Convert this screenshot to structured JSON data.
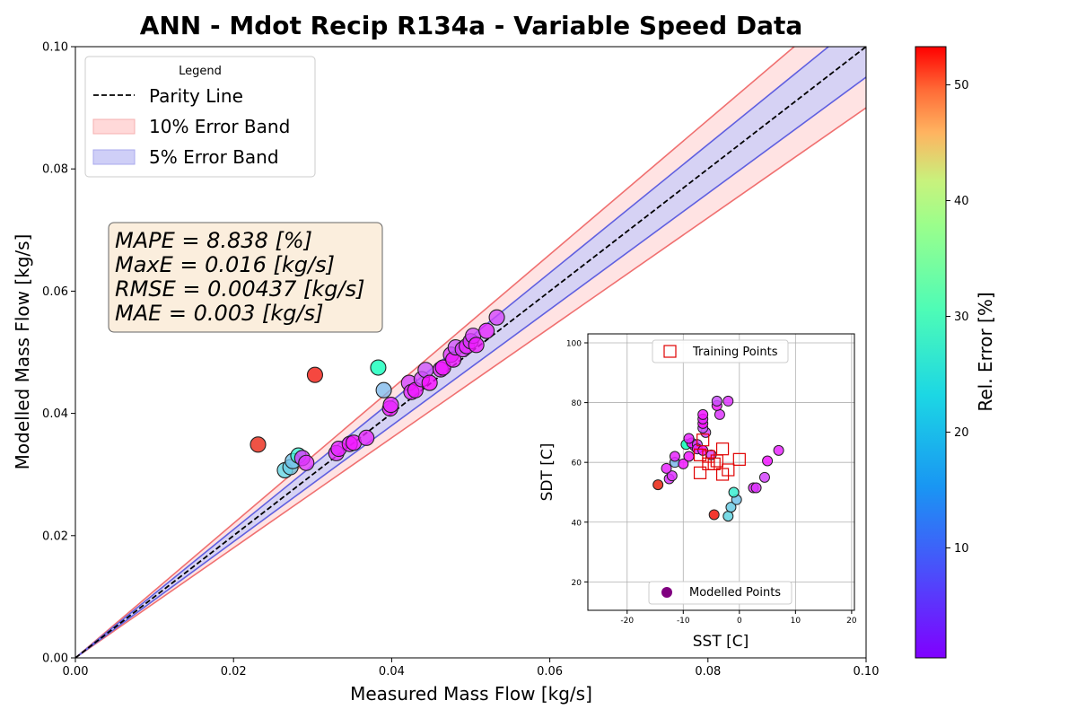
{
  "chart_data": [
    {
      "type": "scatter",
      "title": "ANN - Mdot Recip R134a - Variable Speed Data",
      "xlabel": "Measured Mass Flow [kg/s]",
      "ylabel": "Modelled Mass Flow [kg/s]",
      "xlim": [
        0,
        0.1
      ],
      "ylim": [
        0,
        0.1
      ],
      "xticks": [
        "0.00",
        "0.02",
        "0.04",
        "0.06",
        "0.08",
        "0.10"
      ],
      "yticks": [
        "0.00",
        "0.02",
        "0.04",
        "0.06",
        "0.08",
        "0.10"
      ],
      "grid": false,
      "legend": {
        "title": "Legend",
        "placement": "top-left",
        "entries": [
          "Parity Line",
          "10% Error Band",
          "5% Error Band"
        ]
      },
      "stats_box": [
        "MAPE = 8.838 [%]",
        "MaxE = 0.016 [kg/s]",
        "RMSE = 0.00437 [kg/s]",
        "MAE = 0.003 [kg/s]"
      ],
      "colors": {
        "band10_fill": "#ffd9d9",
        "band10_line": "#f07070",
        "band5_fill": "#cfcff7",
        "band5_line": "#6060e0",
        "stats_box": "#faebd7"
      },
      "points": [
        {
          "x": 0.0231,
          "y": 0.0349,
          "err": 51
        },
        {
          "x": 0.0303,
          "y": 0.0463,
          "err": 52
        },
        {
          "x": 0.0383,
          "y": 0.0475,
          "err": 26
        },
        {
          "x": 0.039,
          "y": 0.0438,
          "err": 14
        },
        {
          "x": 0.0265,
          "y": 0.0307,
          "err": 17
        },
        {
          "x": 0.0272,
          "y": 0.0312,
          "err": 16
        },
        {
          "x": 0.0275,
          "y": 0.0322,
          "err": 15
        },
        {
          "x": 0.0282,
          "y": 0.0331,
          "err": 21
        },
        {
          "x": 0.0287,
          "y": 0.0327,
          "err": 4
        },
        {
          "x": 0.0292,
          "y": 0.0319,
          "err": 4
        },
        {
          "x": 0.033,
          "y": 0.0335,
          "err": 3
        },
        {
          "x": 0.0333,
          "y": 0.0342,
          "err": 3
        },
        {
          "x": 0.0347,
          "y": 0.035,
          "err": 2
        },
        {
          "x": 0.0352,
          "y": 0.0352,
          "err": 2
        },
        {
          "x": 0.0368,
          "y": 0.036,
          "err": 3
        },
        {
          "x": 0.0398,
          "y": 0.0408,
          "err": 2
        },
        {
          "x": 0.0399,
          "y": 0.0414,
          "err": 3
        },
        {
          "x": 0.0422,
          "y": 0.045,
          "err": 5
        },
        {
          "x": 0.0425,
          "y": 0.0435,
          "err": 3
        },
        {
          "x": 0.043,
          "y": 0.0438,
          "err": 2
        },
        {
          "x": 0.0438,
          "y": 0.0456,
          "err": 5
        },
        {
          "x": 0.0443,
          "y": 0.0471,
          "err": 6
        },
        {
          "x": 0.0448,
          "y": 0.045,
          "err": 1
        },
        {
          "x": 0.0462,
          "y": 0.0472,
          "err": 3
        },
        {
          "x": 0.0465,
          "y": 0.0475,
          "err": 2
        },
        {
          "x": 0.0475,
          "y": 0.0496,
          "err": 4
        },
        {
          "x": 0.0478,
          "y": 0.0488,
          "err": 2
        },
        {
          "x": 0.0481,
          "y": 0.0508,
          "err": 6
        },
        {
          "x": 0.049,
          "y": 0.0505,
          "err": 4
        },
        {
          "x": 0.0495,
          "y": 0.051,
          "err": 3
        },
        {
          "x": 0.05,
          "y": 0.0518,
          "err": 4
        },
        {
          "x": 0.0503,
          "y": 0.0527,
          "err": 5
        },
        {
          "x": 0.0507,
          "y": 0.0512,
          "err": 2
        },
        {
          "x": 0.052,
          "y": 0.0535,
          "err": 3
        },
        {
          "x": 0.0533,
          "y": 0.0557,
          "err": 5
        }
      ]
    },
    {
      "type": "scatter",
      "xlabel": "SST [C]",
      "ylabel": "SDT [C]",
      "xlim": [
        -27,
        20.5
      ],
      "ylim": [
        10.5,
        103
      ],
      "xticks": [
        "-20",
        "-10",
        "0",
        "10",
        "20"
      ],
      "yticks": [
        "20",
        "40",
        "60",
        "80",
        "100"
      ],
      "grid": true,
      "legend": {
        "top_entry": "Training Points",
        "bottom_entry": "Modelled Points"
      },
      "training_points": [
        {
          "x": -6.5,
          "y": 67.5
        },
        {
          "x": -5.5,
          "y": 62
        },
        {
          "x": -3,
          "y": 64.5
        },
        {
          "x": -4,
          "y": 60.5
        },
        {
          "x": -5.5,
          "y": 59.5
        },
        {
          "x": -2,
          "y": 57.5
        },
        {
          "x": -3,
          "y": 56
        },
        {
          "x": -7,
          "y": 56.5
        },
        {
          "x": 0,
          "y": 61
        },
        {
          "x": -7,
          "y": 62.5
        },
        {
          "x": -4.5,
          "y": 59.5
        }
      ],
      "modelled_points": [
        {
          "x": -14.5,
          "y": 52.5,
          "err": 51
        },
        {
          "x": -4.5,
          "y": 42.5,
          "err": 52
        },
        {
          "x": -9.5,
          "y": 66,
          "err": 26
        },
        {
          "x": -11.5,
          "y": 60,
          "err": 14
        },
        {
          "x": -2,
          "y": 42,
          "err": 17
        },
        {
          "x": -1.5,
          "y": 45,
          "err": 16
        },
        {
          "x": -0.5,
          "y": 47.5,
          "err": 15
        },
        {
          "x": -1,
          "y": 50,
          "err": 21
        },
        {
          "x": -12.5,
          "y": 54.5,
          "err": 4
        },
        {
          "x": -12,
          "y": 55.5,
          "err": 4
        },
        {
          "x": -13,
          "y": 58,
          "err": 3
        },
        {
          "x": -11.5,
          "y": 62,
          "err": 3
        },
        {
          "x": -10,
          "y": 59.5,
          "err": 2
        },
        {
          "x": -9,
          "y": 62,
          "err": 2
        },
        {
          "x": -8,
          "y": 65.5,
          "err": 3
        },
        {
          "x": -8.5,
          "y": 66.5,
          "err": 2
        },
        {
          "x": -9,
          "y": 68,
          "err": 3
        },
        {
          "x": -7.5,
          "y": 66,
          "err": 5
        },
        {
          "x": -7.5,
          "y": 64.5,
          "err": 3
        },
        {
          "x": -6.5,
          "y": 64,
          "err": 2
        },
        {
          "x": -6,
          "y": 70,
          "err": 5
        },
        {
          "x": -6.5,
          "y": 71.5,
          "err": 6
        },
        {
          "x": -6.5,
          "y": 73,
          "err": 1
        },
        {
          "x": -6.5,
          "y": 74.5,
          "err": 3
        },
        {
          "x": -6.5,
          "y": 76,
          "err": 2
        },
        {
          "x": -3.5,
          "y": 76,
          "err": 4
        },
        {
          "x": -4,
          "y": 79,
          "err": 2
        },
        {
          "x": -4,
          "y": 80.5,
          "err": 6
        },
        {
          "x": -2,
          "y": 80.5,
          "err": 4
        },
        {
          "x": 2.5,
          "y": 51.5,
          "err": 3
        },
        {
          "x": 3,
          "y": 51.5,
          "err": 4
        },
        {
          "x": 4.5,
          "y": 55,
          "err": 5
        },
        {
          "x": 5,
          "y": 60.5,
          "err": 2
        },
        {
          "x": 7,
          "y": 64,
          "err": 3
        },
        {
          "x": -5,
          "y": 62.5,
          "err": 5
        }
      ]
    }
  ],
  "colorbar": {
    "label": "Rel. Error [%]",
    "min": 0.5,
    "max": 53.3,
    "ticks": [
      "10",
      "20",
      "30",
      "40",
      "50"
    ],
    "colormap": "rainbow"
  }
}
